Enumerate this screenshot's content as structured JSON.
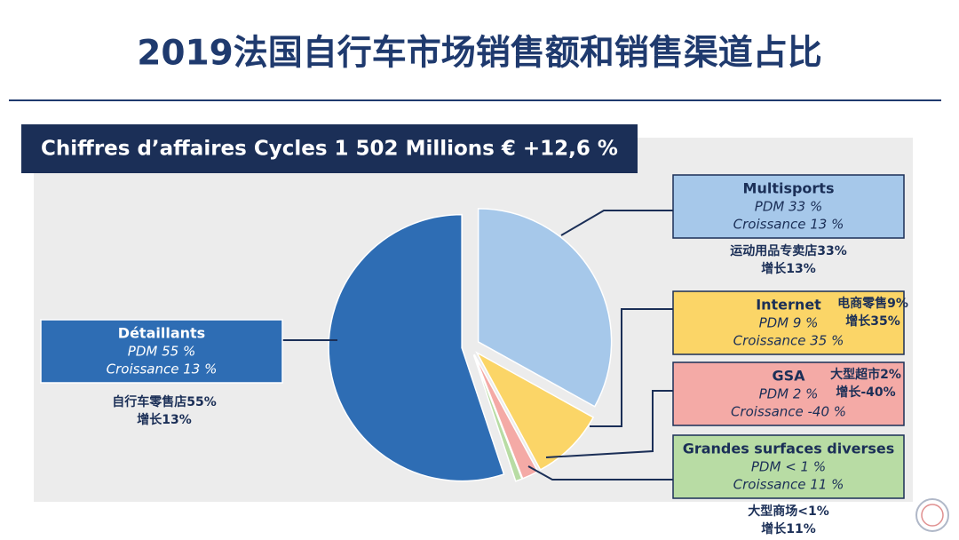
{
  "chart_data": {
    "type": "pie",
    "title": "2019法国自行车市场销售额和销售渠道占比",
    "subtitle": "Chiffres d’affaires Cycles 1 502 Millions € +12,6 %",
    "categories": [
      "Multisports",
      "Internet",
      "GSA",
      "Grandes surfaces diverses",
      "Détaillants"
    ],
    "values": [
      33,
      9,
      2,
      0.8,
      55
    ],
    "value_labels": [
      "PDM 33 %",
      "PDM 9 %",
      "PDM 2 %",
      "PDM < 1 %",
      "PDM 55 %"
    ],
    "growth_labels": [
      "Croissance  13 %",
      "Croissance  35 %",
      "Croissance  -40 %",
      "Croissance  11 %",
      "Croissance  13 %"
    ],
    "notes": [
      [
        "运动用品专卖店33%",
        "增长13%"
      ],
      [
        "电商零售9%",
        "增长35%"
      ],
      [
        "大型超市2%",
        "增长-40%"
      ],
      [
        "大型商场<1%",
        "增长11%"
      ],
      [
        "自行车零售店55%",
        "增长13%"
      ]
    ],
    "colors": [
      "#a6c8ea",
      "#fbd567",
      "#f4aaa6",
      "#b8dca4",
      "#2e6db4"
    ]
  }
}
